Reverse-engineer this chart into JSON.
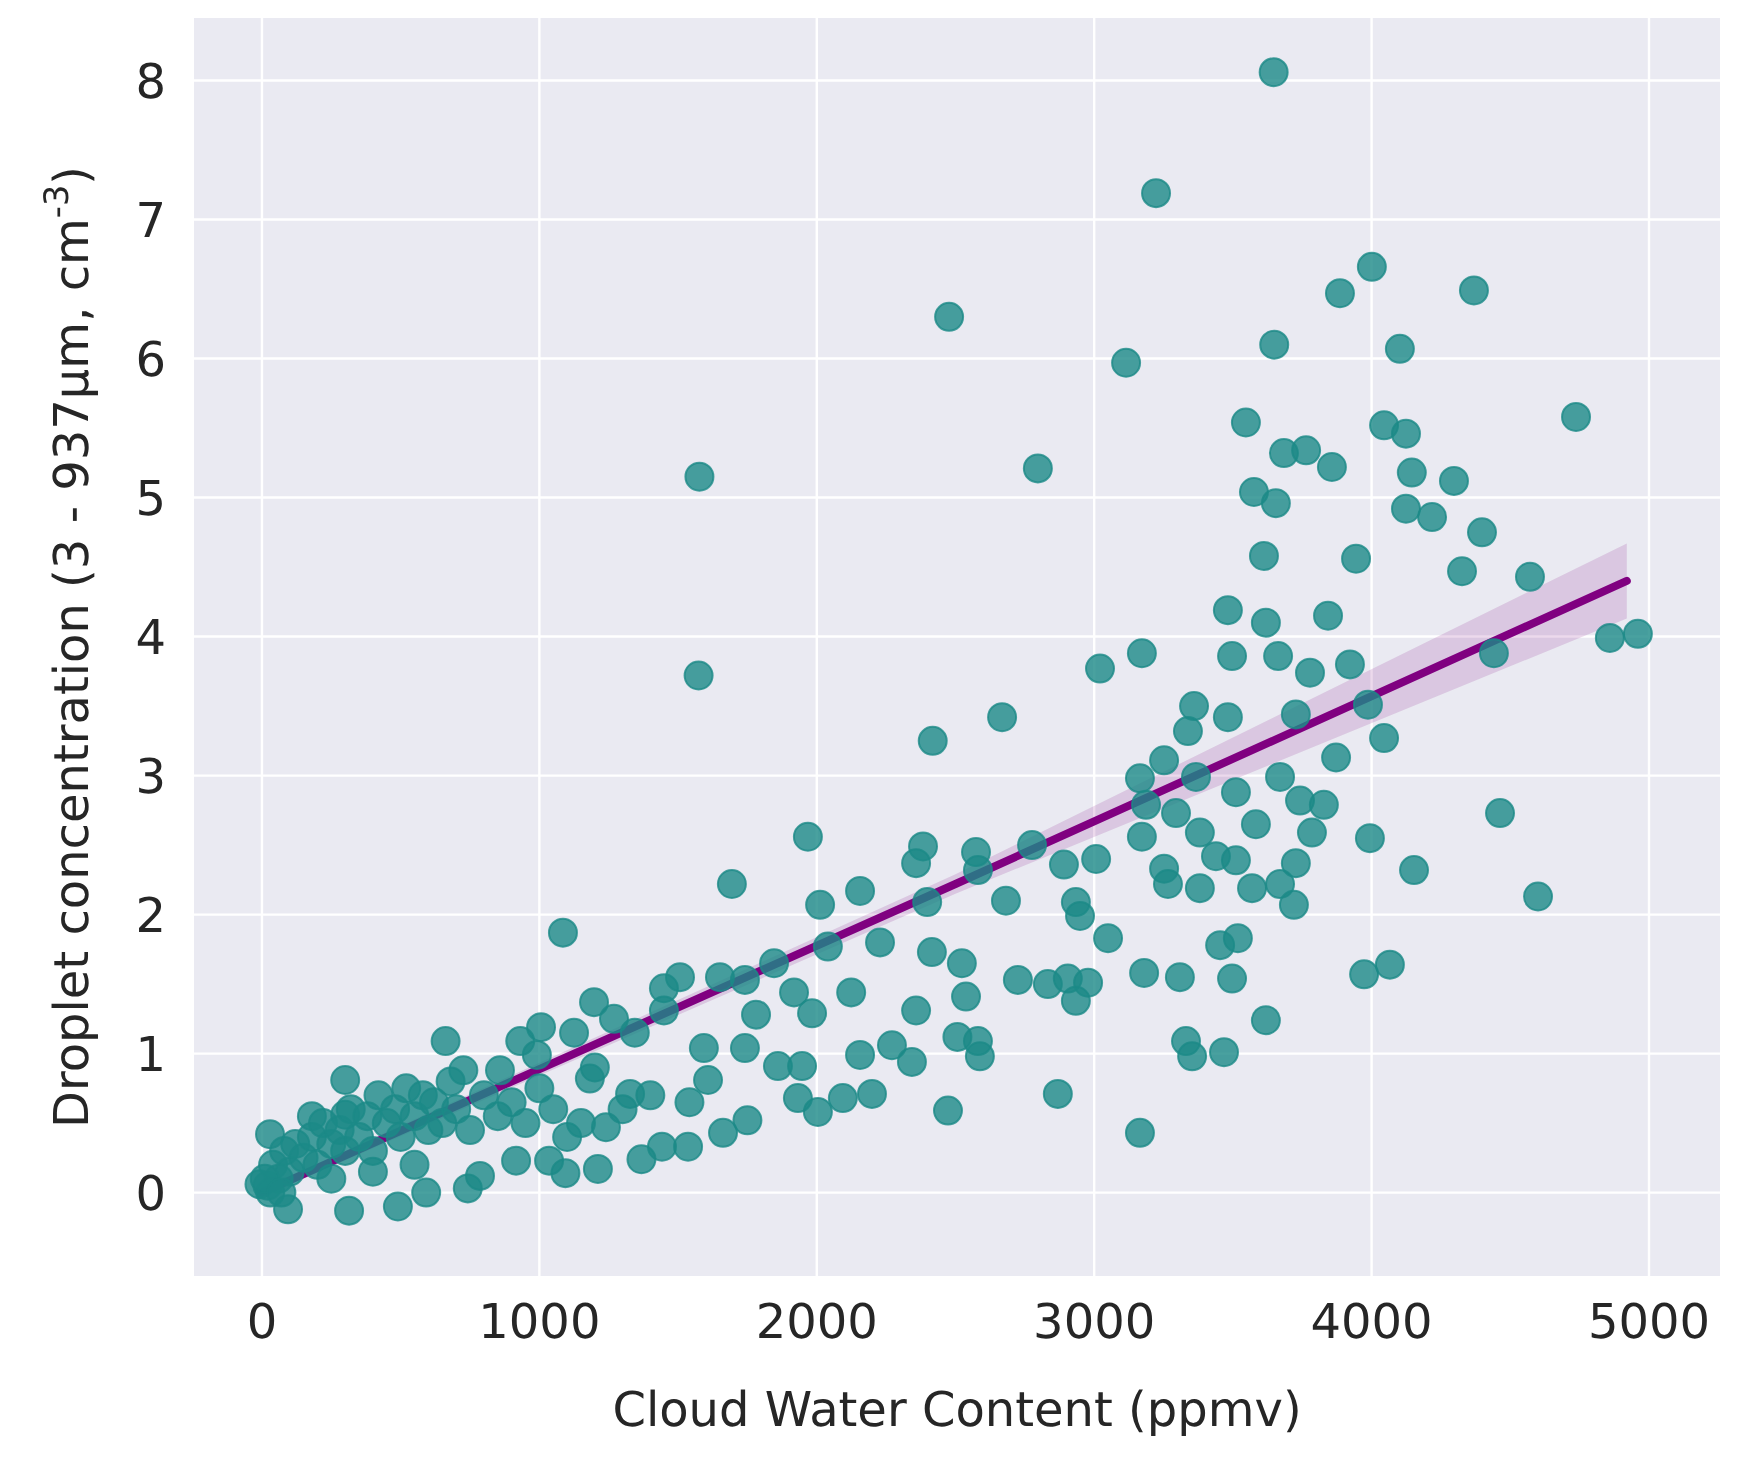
{
  "chart_data": {
    "type": "scatter",
    "xlabel": "Cloud Water Content (ppmv)",
    "ylabel": "Droplet concentration (3 - 937μm, cm$^{-3}$)",
    "xlim": [
      -245,
      5256
    ],
    "ylim": [
      -0.6,
      8.45
    ],
    "xticks": [
      0,
      1000,
      2000,
      3000,
      4000,
      5000
    ],
    "yticks": [
      0,
      1,
      2,
      3,
      4,
      5,
      6,
      7,
      8
    ],
    "grid": true,
    "legend": false,
    "series": [
      {
        "marker": "circle",
        "color": "#1b8a87",
        "x": [
          3647,
          3223,
          4001,
          3886,
          4369,
          3649,
          4102,
          3115,
          4737,
          3547,
          4045,
          4124,
          2797,
          3684,
          3764,
          3857,
          4145,
          4297,
          3576,
          3655,
          4124,
          4218,
          4398,
          3612,
          3944,
          4326,
          4571,
          3482,
          3619,
          3843,
          3172,
          3021,
          3497,
          3663,
          3778,
          3922,
          4859,
          4960,
          4441,
          2668,
          3360,
          3482,
          3338,
          3727,
          3987,
          4045,
          3872,
          3252,
          3165,
          3367,
          3511,
          3670,
          3742,
          3828,
          3187,
          3295,
          4463,
          3172,
          3381,
          3583,
          3785,
          3994,
          2574,
          2776,
          2891,
          3007,
          3252,
          3439,
          3511,
          3727,
          3266,
          3381,
          3569,
          3670,
          3720,
          4153,
          4600,
          2682,
          2934,
          2949,
          3050,
          3454,
          3518,
          4066,
          3973,
          2725,
          2833,
          2905,
          2978,
          2934,
          3180,
          3309,
          3497,
          3619,
          3331,
          3353,
          3468,
          2869,
          3165,
          2588,
          2581,
          2477,
          1577,
          1574,
          2418,
          1968,
          1694,
          2383,
          2358,
          2156,
          2012,
          2398,
          2581,
          1085,
          2228,
          2040,
          1846,
          2415,
          2523,
          1507,
          1651,
          1449,
          1741,
          1918,
          2538,
          1983,
          2124,
          2358,
          1781,
          1197,
          1269,
          1449,
          1344,
          1125,
          1006,
          931,
          662,
          1593,
          1741,
          1860,
          1947,
          2156,
          2271,
          2343,
          2507,
          2473,
          2004,
          2094,
          2199,
          1932,
          1750,
          1662,
          1536,
          1442,
          1368,
          1541,
          1608,
          300,
          29,
          180,
          300,
          726,
          858,
          991,
          1182,
          1327,
          1240,
          1211,
          1094,
          1035,
          916,
          742,
          786,
          592,
          490,
          314,
          94,
          -9,
          20,
          40,
          60,
          80,
          100,
          120,
          150,
          180,
          200,
          220,
          250,
          280,
          300,
          320,
          350,
          380,
          400,
          420,
          450,
          480,
          500,
          520,
          550,
          580,
          600,
          620,
          650,
          680,
          700,
          750,
          800,
          850,
          900,
          950,
          1000,
          1050,
          1100,
          1150,
          1200,
          1300,
          1400,
          30,
          10,
          70,
          250,
          400,
          550
        ],
        "values": [
          8.06,
          7.19,
          6.66,
          6.47,
          6.49,
          6.1,
          6.07,
          5.97,
          5.58,
          5.54,
          5.52,
          5.46,
          5.21,
          5.32,
          5.34,
          5.22,
          5.18,
          5.12,
          5.04,
          4.96,
          4.92,
          4.86,
          4.75,
          4.58,
          4.56,
          4.47,
          4.43,
          4.19,
          4.1,
          4.15,
          3.88,
          3.77,
          3.86,
          3.86,
          3.74,
          3.8,
          3.99,
          4.02,
          3.88,
          3.42,
          3.5,
          3.42,
          3.32,
          3.44,
          3.51,
          3.27,
          3.13,
          3.11,
          2.98,
          2.99,
          2.88,
          2.99,
          2.82,
          2.79,
          2.79,
          2.73,
          2.73,
          2.56,
          2.59,
          2.65,
          2.59,
          2.55,
          2.45,
          2.5,
          2.36,
          2.4,
          2.33,
          2.42,
          2.39,
          2.37,
          2.22,
          2.19,
          2.19,
          2.22,
          2.07,
          2.32,
          2.13,
          2.1,
          2.09,
          1.99,
          1.83,
          1.78,
          1.83,
          1.64,
          1.57,
          1.53,
          1.5,
          1.54,
          1.51,
          1.38,
          1.58,
          1.55,
          1.54,
          1.24,
          1.09,
          0.98,
          1.01,
          0.71,
          0.43,
          0.98,
          1.09,
          6.3,
          5.15,
          3.72,
          3.25,
          2.56,
          2.22,
          2.49,
          2.37,
          2.17,
          2.07,
          2.09,
          2.32,
          1.87,
          1.8,
          1.77,
          1.65,
          1.73,
          1.65,
          1.55,
          1.55,
          1.47,
          1.53,
          1.44,
          1.41,
          1.29,
          1.44,
          1.31,
          1.28,
          1.37,
          1.25,
          1.31,
          1.15,
          1.15,
          1.19,
          1.09,
          1.09,
          1.04,
          1.04,
          0.91,
          0.91,
          0.99,
          1.06,
          0.94,
          1.12,
          0.59,
          0.58,
          0.68,
          0.71,
          0.68,
          0.52,
          0.43,
          0.33,
          0.33,
          0.24,
          0.65,
          0.81,
          0.81,
          0.42,
          0.55,
          0.56,
          0.88,
          0.88,
          0.99,
          0.82,
          0.71,
          0.47,
          0.17,
          0.14,
          0.23,
          0.23,
          0.03,
          0.12,
          0,
          -0.1,
          -0.13,
          -0.12,
          0.06,
          0.05,
          0.2,
          0.1,
          0.3,
          0.15,
          0.35,
          0.25,
          0.4,
          0.2,
          0.5,
          0.35,
          0.45,
          0.3,
          0.6,
          0.4,
          0.55,
          0.3,
          0.7,
          0.5,
          0.6,
          0.4,
          0.75,
          0.55,
          0.7,
          0.45,
          0.65,
          0.5,
          0.8,
          0.6,
          0.45,
          0.7,
          0.55,
          0.65,
          0.5,
          0.75,
          0.6,
          0.4,
          0.5,
          0.9,
          0.6,
          0.7,
          0,
          0.1,
          0,
          0.1,
          0.15,
          0.2
        ]
      },
      {
        "type": "line",
        "color": "#800080",
        "x": [
          0,
          2500,
          4920
        ],
        "values": [
          0,
          2.22,
          4.4
        ],
        "lower": [
          -0.03,
          2.15,
          4.13
        ],
        "upper": [
          0.03,
          2.29,
          4.67
        ]
      }
    ]
  }
}
